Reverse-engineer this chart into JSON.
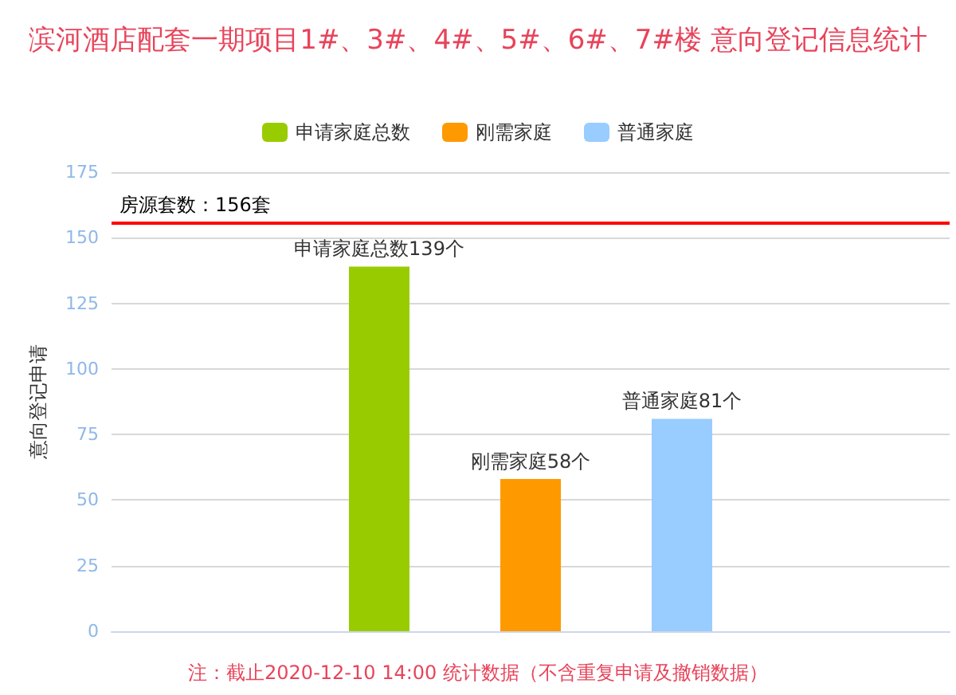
{
  "chart_data": {
    "type": "bar",
    "title": "滨河酒店配套一期项目1#、3#、4#、5#、6#、7#楼 意向登记信息统计",
    "ylabel": "意向登记申请",
    "categories": [
      null
    ],
    "series": [
      {
        "name": "申请家庭总数",
        "color": "#99cc00",
        "values": [
          139
        ],
        "value_labels": [
          "申请家庭总数139个"
        ]
      },
      {
        "name": "刚需家庭",
        "color": "#ff9900",
        "values": [
          58
        ],
        "value_labels": [
          "刚需家庭58个"
        ]
      },
      {
        "name": "普通家庭",
        "color": "#99ccff",
        "values": [
          81
        ],
        "value_labels": [
          "普通家庭81个"
        ]
      }
    ],
    "ylim": [
      0,
      175
    ],
    "yticks": [
      0,
      25,
      50,
      75,
      100,
      125,
      150,
      175
    ],
    "grid": "y",
    "legend": "top",
    "ref_lines": [
      {
        "axis": "y",
        "value": 156,
        "label": "房源套数：156套",
        "color": "#ff0000"
      }
    ],
    "annotations": [
      "注：截止2020-12-10 14:00 统计数据（不含重复申请及撤销数据）"
    ]
  }
}
